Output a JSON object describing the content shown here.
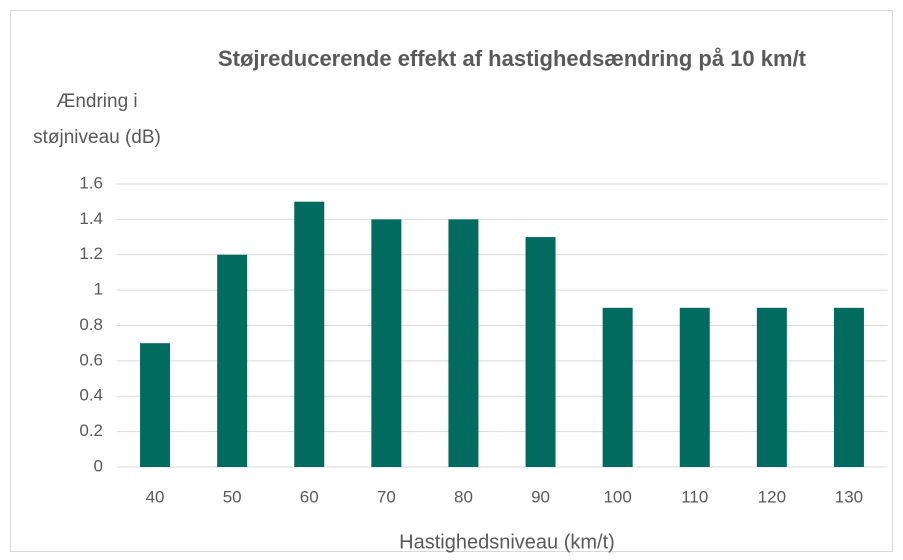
{
  "chart_data": {
    "type": "bar",
    "title": "Støjreducerende effekt af hastighedsændring på 10 km/t",
    "y_label": "Ændring i støjniveau (dB)",
    "x_label": "Hastighedsniveau (km/t)",
    "categories": [
      "40",
      "50",
      "60",
      "70",
      "80",
      "90",
      "100",
      "110",
      "120",
      "130"
    ],
    "values": [
      0.7,
      1.2,
      1.5,
      1.4,
      1.4,
      1.3,
      0.9,
      0.9,
      0.9,
      0.9
    ],
    "color": "#006b5e",
    "ylim": [
      0,
      1.6
    ],
    "yticks": [
      0,
      0.2,
      0.4,
      0.6,
      0.8,
      1,
      1.2,
      1.4,
      1.6
    ],
    "grid": true
  }
}
